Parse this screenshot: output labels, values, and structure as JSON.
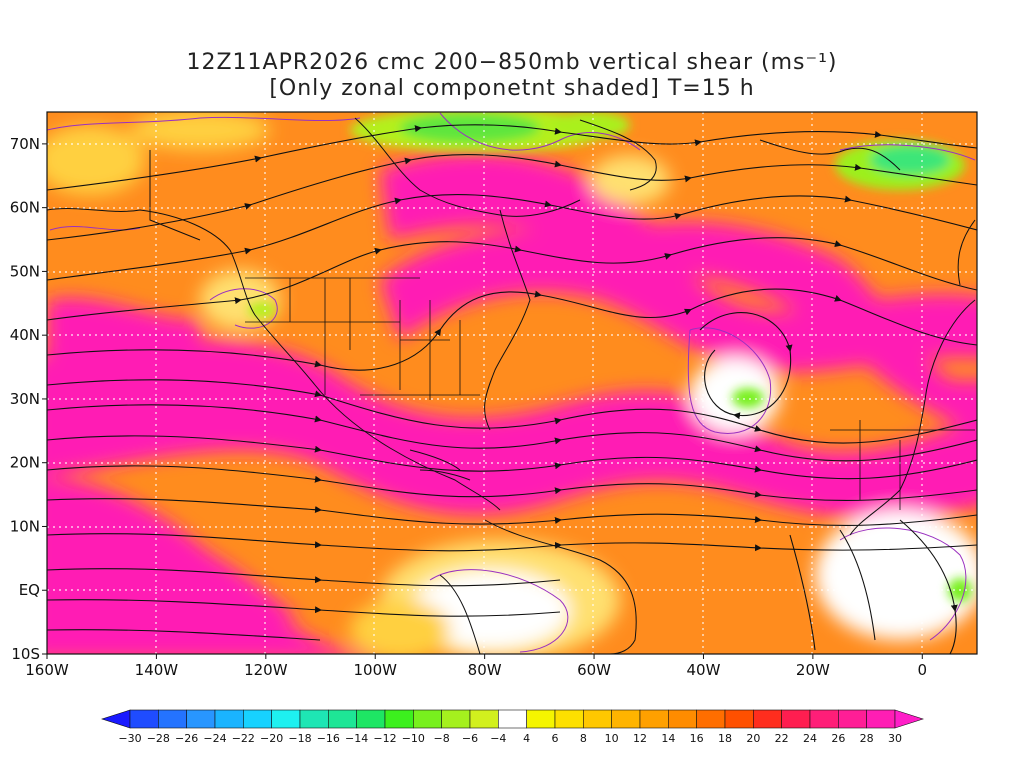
{
  "title": {
    "line1": "12Z11APR2026 cmc 200−850mb vertical shear (ms⁻¹)",
    "line2": "[Only zonal componetnt shaded] T=15 h"
  },
  "map": {
    "lon_range": [
      -160,
      10
    ],
    "lat_range": [
      -10,
      75
    ],
    "lat_ticks": [
      {
        "value": 70,
        "label": "70N"
      },
      {
        "value": 60,
        "label": "60N"
      },
      {
        "value": 50,
        "label": "50N"
      },
      {
        "value": 40,
        "label": "40N"
      },
      {
        "value": 30,
        "label": "30N"
      },
      {
        "value": 20,
        "label": "20N"
      },
      {
        "value": 10,
        "label": "10N"
      },
      {
        "value": 0,
        "label": "EQ"
      },
      {
        "value": -10,
        "label": "10S"
      }
    ],
    "lon_ticks": [
      {
        "value": -160,
        "label": "160W"
      },
      {
        "value": -140,
        "label": "140W"
      },
      {
        "value": -120,
        "label": "120W"
      },
      {
        "value": -100,
        "label": "100W"
      },
      {
        "value": -80,
        "label": "80W"
      },
      {
        "value": -60,
        "label": "60W"
      },
      {
        "value": -40,
        "label": "40W"
      },
      {
        "value": -20,
        "label": "20W"
      },
      {
        "value": 0,
        "label": "0"
      }
    ]
  },
  "colorbar": {
    "labels": [
      "-30",
      "-28",
      "-26",
      "-24",
      "-22",
      "-20",
      "-18",
      "-16",
      "-14",
      "-12",
      "-10",
      "-8",
      "-6",
      "-4",
      "4",
      "6",
      "8",
      "10",
      "12",
      "14",
      "16",
      "18",
      "20",
      "22",
      "24",
      "26",
      "28",
      "30"
    ],
    "colors": [
      "#1a1aff",
      "#1f4cff",
      "#2473ff",
      "#2896ff",
      "#1ab4ff",
      "#17d2ff",
      "#1ef0f0",
      "#1ee6b4",
      "#1ee696",
      "#1ee664",
      "#3cf01e",
      "#78f01e",
      "#a5f01e",
      "#d2f01e",
      "#ffffff",
      "#f5f500",
      "#fde000",
      "#ffc800",
      "#ffb400",
      "#ffa000",
      "#ff8c00",
      "#ff6e00",
      "#ff5000",
      "#ff2d1e",
      "#ff1e50",
      "#ff1e78",
      "#ff1e96",
      "#ff1eb4",
      "#ff1ec8"
    ]
  }
}
